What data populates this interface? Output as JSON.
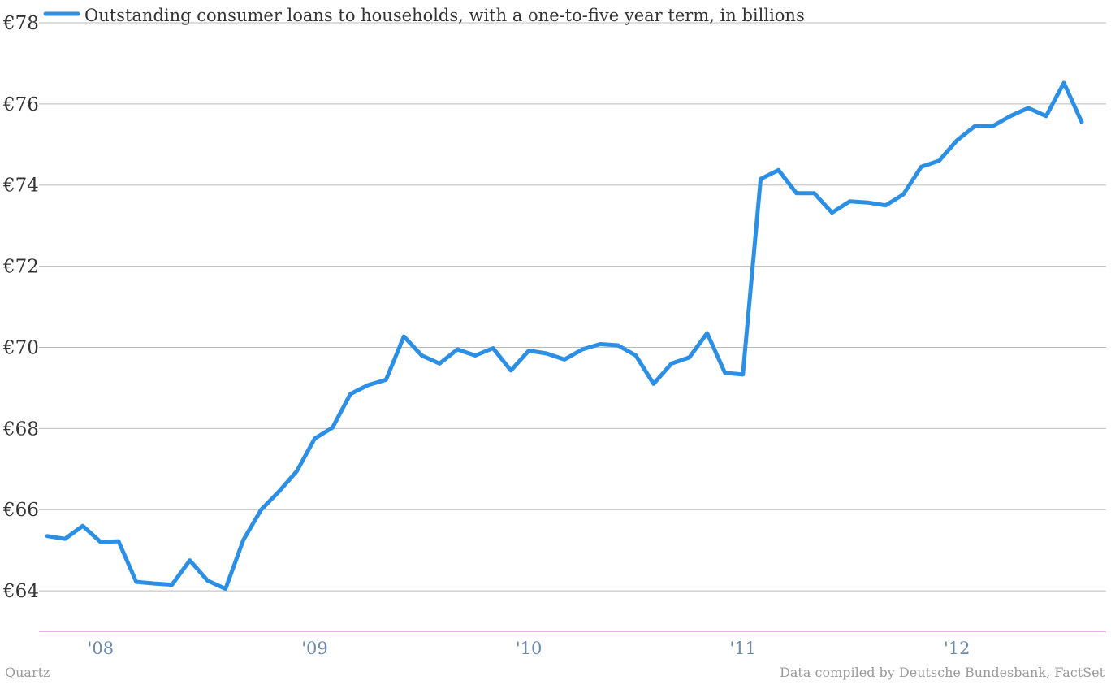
{
  "chart_data": {
    "type": "line",
    "title": "",
    "xlabel": "",
    "ylabel": "",
    "ylim": [
      63,
      78
    ],
    "y_ticks": [
      "€64",
      "€66",
      "€68",
      "€70",
      "€72",
      "€74",
      "€76",
      "€78"
    ],
    "y_tick_values": [
      64,
      66,
      68,
      70,
      72,
      74,
      76,
      78
    ],
    "x_ticks": [
      "'08",
      "'09",
      "'10",
      "'11",
      "'12"
    ],
    "x_tick_values": [
      "2008-01",
      "2009-01",
      "2010-01",
      "2011-01",
      "2012-01"
    ],
    "grid": true,
    "legend_position": "top-left",
    "series": [
      {
        "name": "Outstanding consumer loans to households, with a one-to-five year term, in billions",
        "color": "#2b8fe5",
        "x": [
          "2007-10",
          "2007-11",
          "2007-12",
          "2008-01",
          "2008-02",
          "2008-03",
          "2008-04",
          "2008-05",
          "2008-06",
          "2008-07",
          "2008-08",
          "2008-09",
          "2008-10",
          "2008-11",
          "2008-12",
          "2009-01",
          "2009-02",
          "2009-03",
          "2009-04",
          "2009-05",
          "2009-06",
          "2009-07",
          "2009-08",
          "2009-09",
          "2009-10",
          "2009-11",
          "2009-12",
          "2010-01",
          "2010-02",
          "2010-03",
          "2010-04",
          "2010-05",
          "2010-06",
          "2010-07",
          "2010-08",
          "2010-09",
          "2010-10",
          "2010-11",
          "2010-12",
          "2011-01",
          "2011-02",
          "2011-03",
          "2011-04",
          "2011-05",
          "2011-06",
          "2011-07",
          "2011-08",
          "2011-09",
          "2011-10",
          "2011-11",
          "2011-12",
          "2012-01",
          "2012-02",
          "2012-03",
          "2012-04",
          "2012-05",
          "2012-06",
          "2012-07",
          "2012-08"
        ],
        "values": [
          65.35,
          65.28,
          65.6,
          65.2,
          65.22,
          64.22,
          64.18,
          64.15,
          64.75,
          64.25,
          64.05,
          65.25,
          66.0,
          66.45,
          66.95,
          67.75,
          68.02,
          68.85,
          69.07,
          69.2,
          70.27,
          69.8,
          69.6,
          69.95,
          69.8,
          69.98,
          69.43,
          69.92,
          69.85,
          69.7,
          69.95,
          70.08,
          70.05,
          69.8,
          69.1,
          69.6,
          69.75,
          70.35,
          69.37,
          69.33,
          74.15,
          74.37,
          73.8,
          73.8,
          73.32,
          73.6,
          73.57,
          73.5,
          73.77,
          74.45,
          74.6,
          75.1,
          75.45,
          75.45,
          75.7,
          75.9,
          75.7,
          76.52,
          75.55
        ]
      }
    ]
  },
  "footer": {
    "source_left": "Quartz",
    "source_right": "Data compiled by Deutsche Bundesbank, FactSet"
  },
  "colors": {
    "line": "#2b8fe5",
    "grid": "#bbbbbb",
    "axis": "#e05fbf",
    "tick_x": "#6d8bb0"
  }
}
